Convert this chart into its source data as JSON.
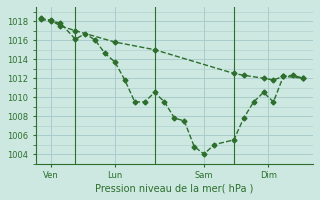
{
  "bg_color": "#cce8e0",
  "grid_color": "#aacccc",
  "line_color": "#2d6e2d",
  "xlabel": "Pression niveau de la mer( hPa )",
  "yticks": [
    1004,
    1006,
    1008,
    1010,
    1012,
    1014,
    1016,
    1018
  ],
  "ylim": [
    1003.0,
    1019.5
  ],
  "xlim": [
    0,
    28
  ],
  "xtick_positions": [
    1.5,
    8,
    17,
    23.5
  ],
  "xtick_labels": [
    "Ven",
    "Lun",
    "Sam",
    "Dim"
  ],
  "vlines": [
    4,
    12,
    20
  ],
  "line1_x": [
    0.5,
    1.5,
    2.5,
    4,
    5,
    6,
    7,
    8,
    9,
    10,
    11,
    12,
    13,
    14,
    15,
    16,
    17,
    18,
    20,
    21,
    22,
    23,
    24,
    25,
    27
  ],
  "line1_y": [
    1018.2,
    1018.0,
    1017.8,
    1016.1,
    1016.7,
    1016.0,
    1014.6,
    1013.7,
    1011.8,
    1009.5,
    1009.5,
    1010.5,
    1009.5,
    1007.8,
    1007.5,
    1004.8,
    1004.0,
    1005.0,
    1005.5,
    1007.8,
    1009.5,
    1010.5,
    1009.5,
    1012.2,
    1012.0
  ],
  "line2_x": [
    0.5,
    1.5,
    2.5,
    4,
    8,
    12,
    20,
    21,
    23,
    24,
    25,
    26,
    27
  ],
  "line2_y": [
    1018.3,
    1018.1,
    1017.5,
    1017.0,
    1015.8,
    1015.0,
    1012.5,
    1012.3,
    1012.0,
    1011.8,
    1012.2,
    1012.3,
    1012.0
  ]
}
